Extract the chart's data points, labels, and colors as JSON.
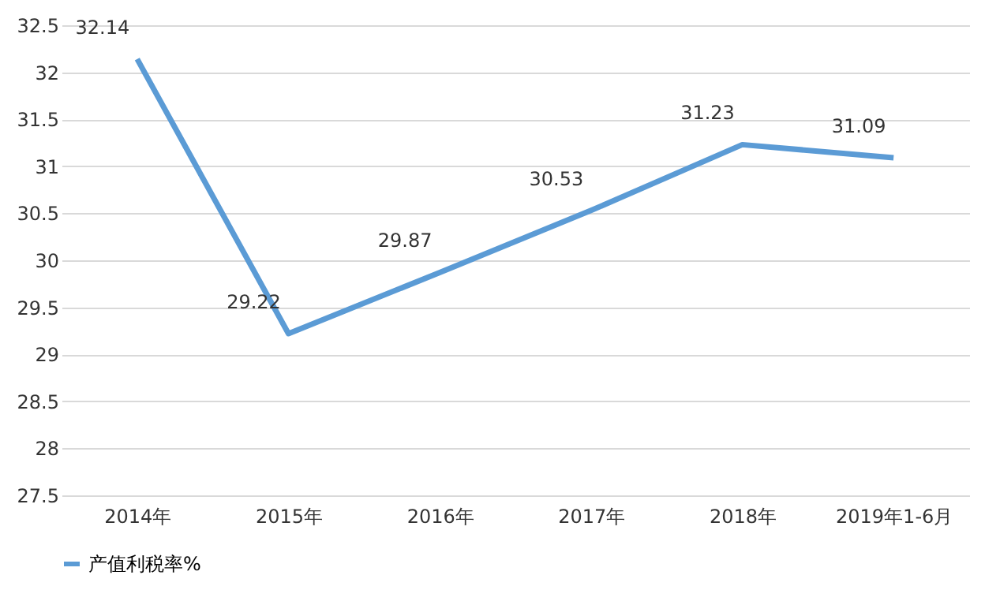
{
  "chart_data": {
    "type": "line",
    "categories": [
      "2014年",
      "2015年",
      "2016年",
      "2017年",
      "2018年",
      "2019年1-6月"
    ],
    "series": [
      {
        "name": "产值利税率%",
        "color": "#5b9bd5",
        "values": [
          32.14,
          29.22,
          29.87,
          30.53,
          31.23,
          31.09
        ]
      }
    ],
    "ylim": [
      27.5,
      32.5
    ],
    "yticks": [
      27.5,
      28,
      28.5,
      29,
      29.5,
      30,
      30.5,
      31,
      31.5,
      32,
      32.5
    ],
    "grid": "y",
    "legend": "bottom",
    "data_labels": true,
    "marker": "none",
    "line_style": "solid"
  }
}
